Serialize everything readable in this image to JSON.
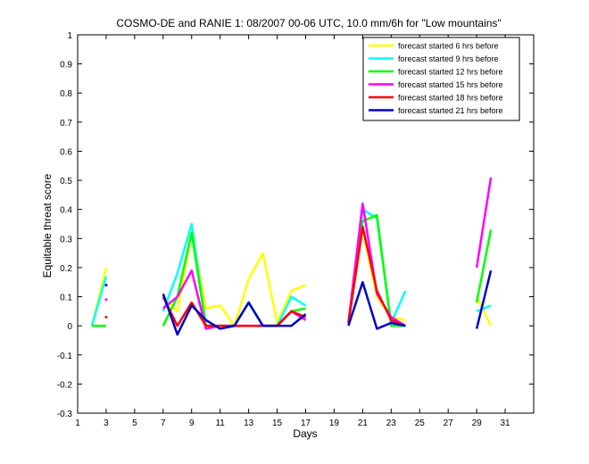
{
  "chart_data": {
    "type": "line",
    "title": "COSMO-DE and RANIE 1: 08/2007 00-06 UTC, 10.0 mm/6h for \"Low mountains\"",
    "xlabel": "Days",
    "ylabel": "Equitable threat score",
    "xlim": [
      1,
      33
    ],
    "ylim": [
      -0.3,
      1
    ],
    "xticks": [
      1,
      3,
      5,
      7,
      9,
      11,
      13,
      15,
      17,
      19,
      21,
      23,
      25,
      27,
      29,
      31
    ],
    "yticks": [
      -0.3,
      -0.2,
      -0.1,
      0,
      0.1,
      0.2,
      0.3,
      0.4,
      0.5,
      0.6,
      0.7,
      0.8,
      0.9,
      1
    ],
    "grid": false,
    "legend_position": "top-right",
    "series": [
      {
        "name": "forecast started 6 hrs before",
        "color": "#ffff00",
        "x": [
          1,
          2,
          3,
          4,
          5,
          6,
          7,
          8,
          9,
          10,
          11,
          12,
          13,
          14,
          15,
          16,
          17,
          18,
          19,
          20,
          21,
          22,
          23,
          24,
          25,
          26,
          27,
          28,
          29,
          30,
          31
        ],
        "y": [
          null,
          0,
          0.2,
          null,
          null,
          null,
          0.1,
          0.05,
          0.32,
          0.06,
          0.07,
          0,
          0.16,
          0.25,
          0.01,
          0.12,
          0.14,
          null,
          null,
          0.01,
          0.33,
          0.1,
          0.03,
          0.02,
          null,
          null,
          null,
          null,
          0.1,
          0,
          null
        ]
      },
      {
        "name": "forecast started 9 hrs before",
        "color": "#00ffff",
        "x": [
          1,
          2,
          3,
          4,
          5,
          6,
          7,
          8,
          9,
          10,
          11,
          12,
          13,
          14,
          15,
          16,
          17,
          18,
          19,
          20,
          21,
          22,
          23,
          24,
          25,
          26,
          27,
          28,
          29,
          30,
          31
        ],
        "y": [
          null,
          0,
          0.17,
          null,
          null,
          null,
          0.05,
          0.18,
          0.35,
          0,
          0,
          0,
          0.08,
          0,
          0,
          0.1,
          0.07,
          null,
          null,
          0.01,
          0.4,
          0.37,
          0.01,
          0.12,
          null,
          null,
          null,
          null,
          0.05,
          0.07,
          null
        ]
      },
      {
        "name": "forecast started 12 hrs before",
        "color": "#00ff00",
        "x": [
          1,
          2,
          3,
          4,
          5,
          6,
          7,
          8,
          9,
          10,
          11,
          12,
          13,
          14,
          15,
          16,
          17,
          18,
          19,
          20,
          21,
          22,
          23,
          24,
          25,
          26,
          27,
          28,
          29,
          30,
          31
        ],
        "y": [
          null,
          0,
          0,
          null,
          null,
          null,
          0,
          0.1,
          0.32,
          0,
          0,
          0,
          0.08,
          0,
          0,
          0.05,
          0.06,
          null,
          null,
          0.01,
          0.36,
          0.38,
          0,
          0,
          null,
          null,
          null,
          null,
          0.08,
          0.33,
          null
        ]
      },
      {
        "name": "forecast started 15 hrs before",
        "color": "#ff00ff",
        "x": [
          1,
          2,
          3,
          4,
          5,
          6,
          7,
          8,
          9,
          10,
          11,
          12,
          13,
          14,
          15,
          16,
          17,
          18,
          19,
          20,
          21,
          22,
          23,
          24,
          25,
          26,
          27,
          28,
          29,
          30,
          31
        ],
        "y": [
          null,
          null,
          0.09,
          null,
          null,
          null,
          0.06,
          0.1,
          0.19,
          -0.01,
          0,
          0,
          0,
          0,
          0,
          0.05,
          0.02,
          null,
          null,
          0.01,
          0.42,
          0.11,
          0.03,
          0,
          null,
          null,
          null,
          null,
          0.2,
          0.51,
          null
        ]
      },
      {
        "name": "forecast started 18 hrs before",
        "color": "#ff0000",
        "x": [
          1,
          2,
          3,
          4,
          5,
          6,
          7,
          8,
          9,
          10,
          11,
          12,
          13,
          14,
          15,
          16,
          17,
          18,
          19,
          20,
          21,
          22,
          23,
          24,
          25,
          26,
          27,
          28,
          29,
          30,
          31
        ],
        "y": [
          null,
          null,
          0.03,
          null,
          null,
          null,
          0.1,
          0,
          0.08,
          0,
          0,
          0,
          0,
          0,
          0,
          0.05,
          0.03,
          null,
          null,
          0.01,
          0.34,
          0.12,
          0.02,
          0,
          null,
          null,
          null,
          null,
          null,
          null,
          null
        ]
      },
      {
        "name": "forecast started 21 hrs before",
        "color": "#0000cc",
        "x": [
          1,
          2,
          3,
          4,
          5,
          6,
          7,
          8,
          9,
          10,
          11,
          12,
          13,
          14,
          15,
          16,
          17,
          18,
          19,
          20,
          21,
          22,
          23,
          24,
          25,
          26,
          27,
          28,
          29,
          30,
          31
        ],
        "y": [
          null,
          null,
          0.14,
          null,
          null,
          null,
          0.11,
          -0.03,
          0.07,
          0.02,
          -0.01,
          0,
          0.08,
          0,
          0,
          0,
          0.04,
          null,
          null,
          0,
          0.15,
          -0.01,
          0.01,
          0,
          null,
          null,
          null,
          null,
          -0.01,
          0.19,
          null
        ]
      }
    ]
  }
}
